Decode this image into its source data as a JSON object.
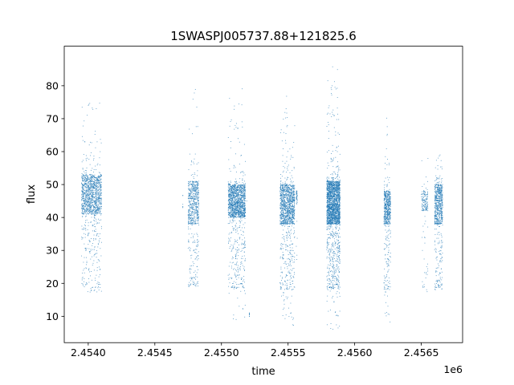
{
  "chart_data": {
    "type": "scatter",
    "title": "1SWASPJ005737.88+121825.6",
    "xlabel": "time",
    "ylabel": "flux",
    "x_offset_label": "1e6",
    "xlim": [
      2.45382,
      2.45681
    ],
    "ylim": [
      2.0,
      92.0
    ],
    "x_ticks": [
      2.454,
      2.4545,
      2.455,
      2.4555,
      2.456,
      2.4565
    ],
    "x_tick_labels": [
      "2.4540",
      "2.4545",
      "2.4550",
      "2.4555",
      "2.4560",
      "2.4565"
    ],
    "y_ticks": [
      10,
      20,
      30,
      40,
      50,
      60,
      70,
      80
    ],
    "y_tick_labels": [
      "10",
      "20",
      "30",
      "40",
      "50",
      "60",
      "70",
      "80"
    ],
    "grid": false,
    "point_color": "#1f77b4",
    "series": [
      {
        "x": [
          2.45397,
          2.45398,
          2.45399,
          2.454,
          2.45402,
          2.45404,
          2.45406,
          2.45408,
          2.45478,
          2.45479,
          2.4548,
          2.45482,
          2.45508,
          2.45509,
          2.4551,
          2.45512,
          2.45514,
          2.45516,
          2.45519,
          2.45547,
          2.45549,
          2.45551,
          2.45553,
          2.45555,
          2.45582,
          2.45583,
          2.45584,
          2.45585,
          2.45586,
          2.45587,
          2.45588,
          2.45589,
          2.45624,
          2.45625,
          2.45626,
          2.45627,
          2.45654,
          2.45662,
          2.45663,
          2.45664,
          2.45665
        ],
        "y": [
          45.0,
          52.0,
          20.0,
          48.0,
          30.0,
          47.0,
          44.0,
          22.0,
          46.0,
          40.0,
          20.0,
          50.0,
          45.0,
          20.0,
          48.0,
          30.0,
          45.0,
          19.0,
          45.0,
          47.0,
          20.0,
          44.0,
          30.0,
          47.0,
          44.0,
          80.0,
          19.0,
          50.0,
          35.0,
          60.0,
          25.0,
          46.0,
          45.0,
          19.0,
          47.0,
          40.0,
          47.0,
          45.0,
          19.0,
          48.0,
          40.0
        ]
      }
    ],
    "clusters": [
      {
        "x_min": 2.45395,
        "x_max": 2.4541,
        "core": [
          41,
          53
        ],
        "min": 17,
        "max": 78,
        "n": 1300
      },
      {
        "x_min": 2.45471,
        "x_max": 2.45471,
        "core": [
          43,
          48
        ],
        "min": 43,
        "max": 48,
        "n": 6
      },
      {
        "x_min": 2.45475,
        "x_max": 2.45483,
        "core": [
          38,
          51
        ],
        "min": 19,
        "max": 82,
        "n": 650
      },
      {
        "x_min": 2.45505,
        "x_max": 2.45518,
        "core": [
          40,
          50
        ],
        "min": 9,
        "max": 80,
        "n": 1500
      },
      {
        "x_min": 2.45521,
        "x_max": 2.45521,
        "core": [
          10,
          11
        ],
        "min": 10,
        "max": 11,
        "n": 8
      },
      {
        "x_min": 2.45544,
        "x_max": 2.45555,
        "core": [
          38,
          50
        ],
        "min": 7,
        "max": 77,
        "n": 1300
      },
      {
        "x_min": 2.45556,
        "x_max": 2.45557,
        "core": [
          44,
          48
        ],
        "min": 26,
        "max": 48,
        "n": 40
      },
      {
        "x_min": 2.45579,
        "x_max": 2.45589,
        "core": [
          38,
          51
        ],
        "min": 6,
        "max": 86,
        "n": 2300
      },
      {
        "x_min": 2.45622,
        "x_max": 2.45627,
        "core": [
          38,
          48
        ],
        "min": 8,
        "max": 74,
        "n": 600
      },
      {
        "x_min": 2.4565,
        "x_max": 2.45655,
        "core": [
          42,
          48
        ],
        "min": 17,
        "max": 63,
        "n": 160
      },
      {
        "x_min": 2.4566,
        "x_max": 2.45666,
        "core": [
          38,
          50
        ],
        "min": 18,
        "max": 60,
        "n": 700
      }
    ]
  }
}
